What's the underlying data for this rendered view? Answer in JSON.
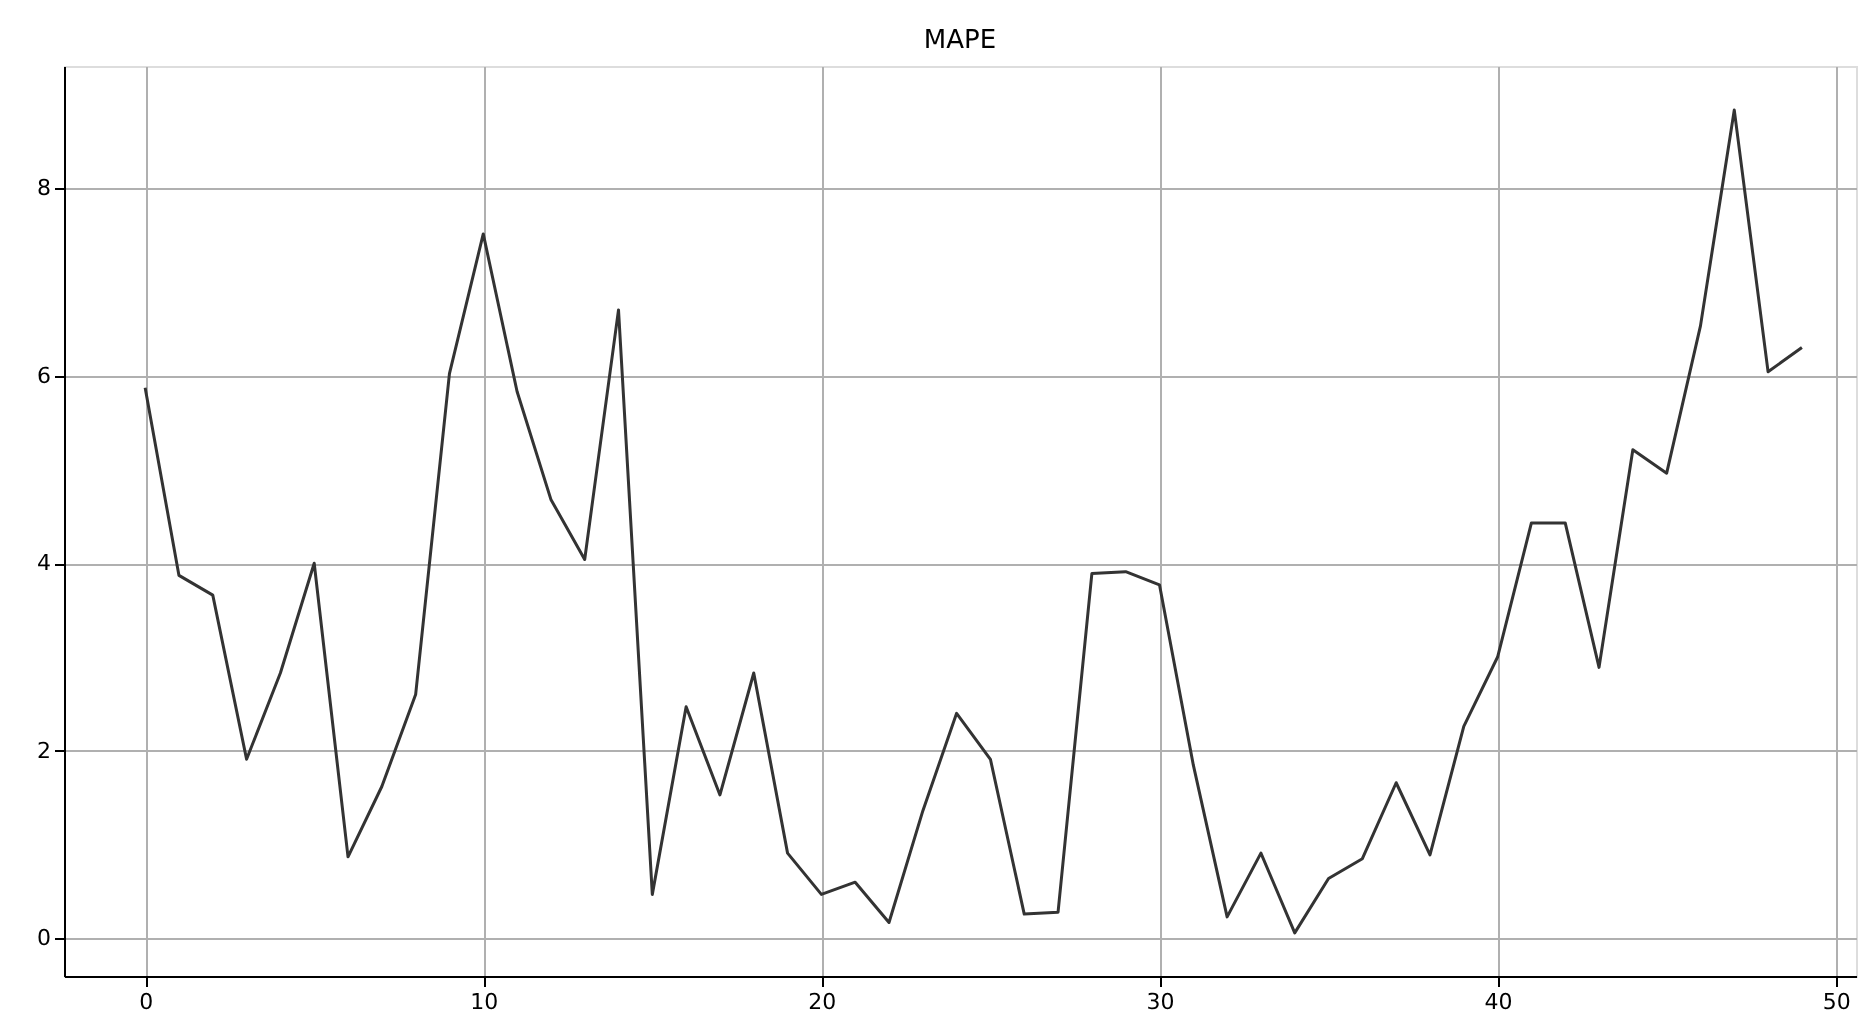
{
  "chart_data": {
    "type": "line",
    "title": "MAPE",
    "x": [
      0,
      1,
      2,
      3,
      4,
      5,
      6,
      7,
      8,
      9,
      10,
      11,
      12,
      13,
      14,
      15,
      16,
      17,
      18,
      19,
      20,
      21,
      22,
      23,
      24,
      25,
      26,
      27,
      28,
      29,
      30,
      31,
      32,
      33,
      34,
      35,
      36,
      37,
      38,
      39,
      40,
      41,
      42,
      43,
      44,
      45,
      46,
      47,
      48,
      49
    ],
    "series": [
      {
        "color": "#333333",
        "values": [
          5.87,
          3.87,
          3.66,
          1.91,
          2.83,
          4.0,
          0.87,
          1.62,
          2.6,
          6.02,
          7.51,
          5.83,
          4.68,
          4.04,
          6.7,
          0.47,
          2.47,
          1.53,
          2.83,
          0.91,
          0.47,
          0.6,
          0.17,
          1.36,
          2.4,
          1.91,
          0.26,
          0.28,
          3.89,
          3.91,
          3.77,
          1.85,
          0.23,
          0.91,
          0.06,
          0.64,
          0.85,
          1.66,
          0.89,
          2.26,
          3.0,
          4.43,
          4.43,
          2.89,
          5.21,
          4.96,
          6.53,
          8.83,
          6.04,
          6.3
        ]
      }
    ],
    "xlim": [
      -2.4,
      50.6
    ],
    "ylim": [
      -0.4,
      9.3
    ],
    "xticks": [
      0,
      10,
      20,
      30,
      40,
      50
    ],
    "yticks": [
      0,
      2,
      4,
      6,
      8
    ],
    "grid": true,
    "legend": false,
    "marker": "none",
    "line_style": "solid"
  }
}
